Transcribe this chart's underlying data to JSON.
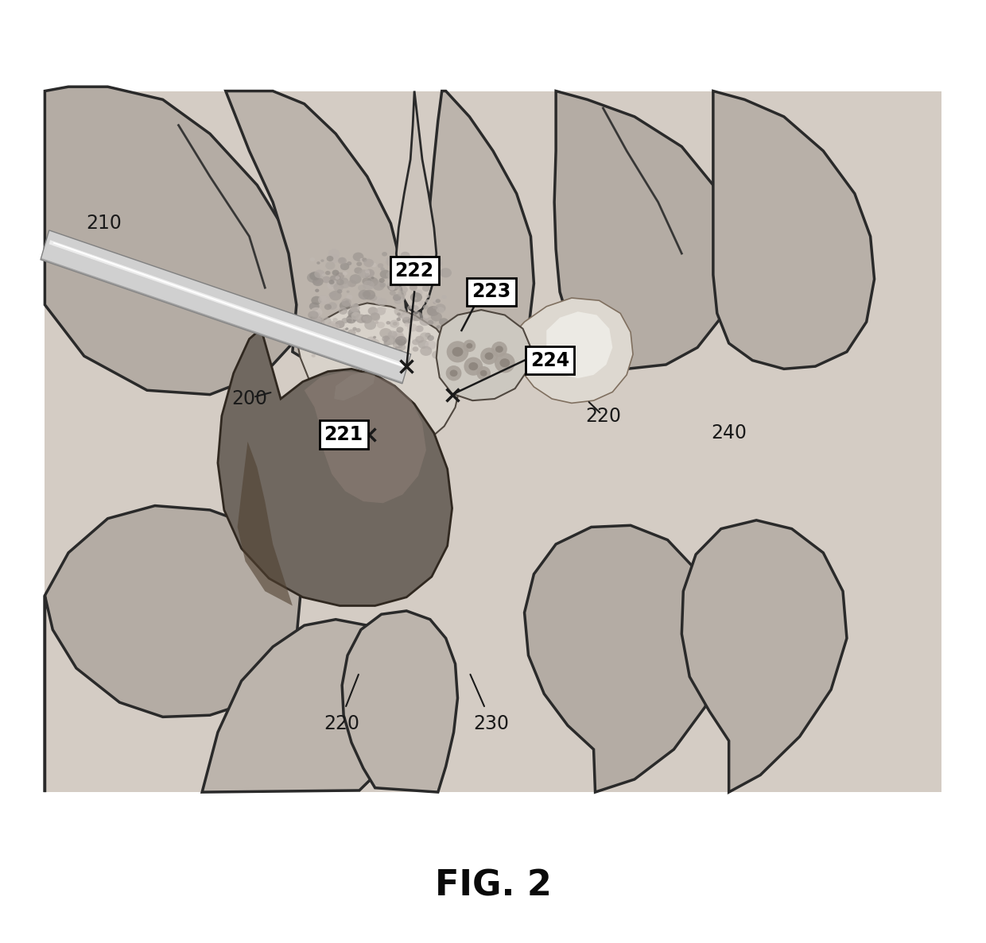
{
  "title": "FIG. 2",
  "title_fontsize": 32,
  "fig_width": 12.4,
  "fig_height": 11.87,
  "bg_color": "#ffffff",
  "outer_bg": "#c8c0b8",
  "lobe_fill": "#b0a898",
  "lobe_edge": "#404040",
  "label_fontsize": 17
}
